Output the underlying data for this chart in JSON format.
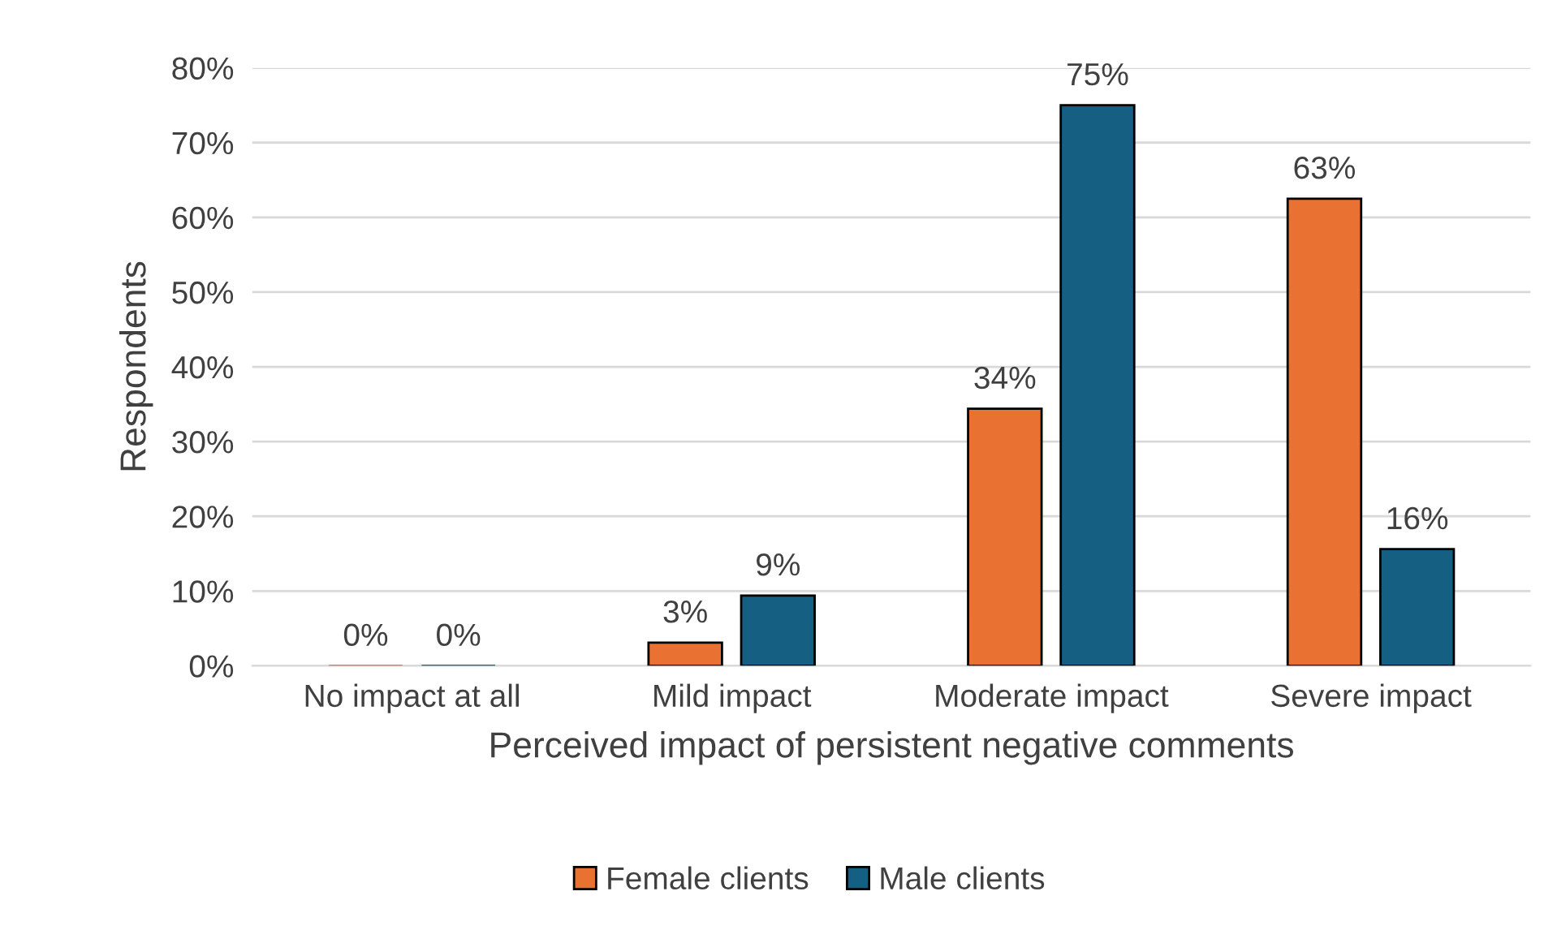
{
  "chart_data": {
    "type": "bar",
    "xlabel": "Perceived impact of persistent negative comments",
    "ylabel": "Respondents",
    "categories": [
      "No impact at all",
      "Mild impact",
      "Moderate impact",
      "Severe impact"
    ],
    "series": [
      {
        "name": "Female clients",
        "color": "#e97132",
        "values": [
          0,
          3.1,
          34.4,
          62.5
        ],
        "value_labels": [
          "0%",
          "3%",
          "34%",
          "63%"
        ]
      },
      {
        "name": "Male clients",
        "color": "#156082",
        "values": [
          0,
          9.4,
          75,
          15.6
        ],
        "value_labels": [
          "0%",
          "9%",
          "75%",
          "16%"
        ]
      }
    ],
    "ylim": [
      0,
      80
    ],
    "yticks": [
      {
        "value": 0,
        "label": "0%"
      },
      {
        "value": 10,
        "label": "10%"
      },
      {
        "value": 20,
        "label": "20%"
      },
      {
        "value": 30,
        "label": "30%"
      },
      {
        "value": 40,
        "label": "40%"
      },
      {
        "value": 50,
        "label": "50%"
      },
      {
        "value": 60,
        "label": "60%"
      },
      {
        "value": 70,
        "label": "70%"
      },
      {
        "value": 80,
        "label": "80%"
      }
    ],
    "grid": "y",
    "legend": "bottom"
  }
}
